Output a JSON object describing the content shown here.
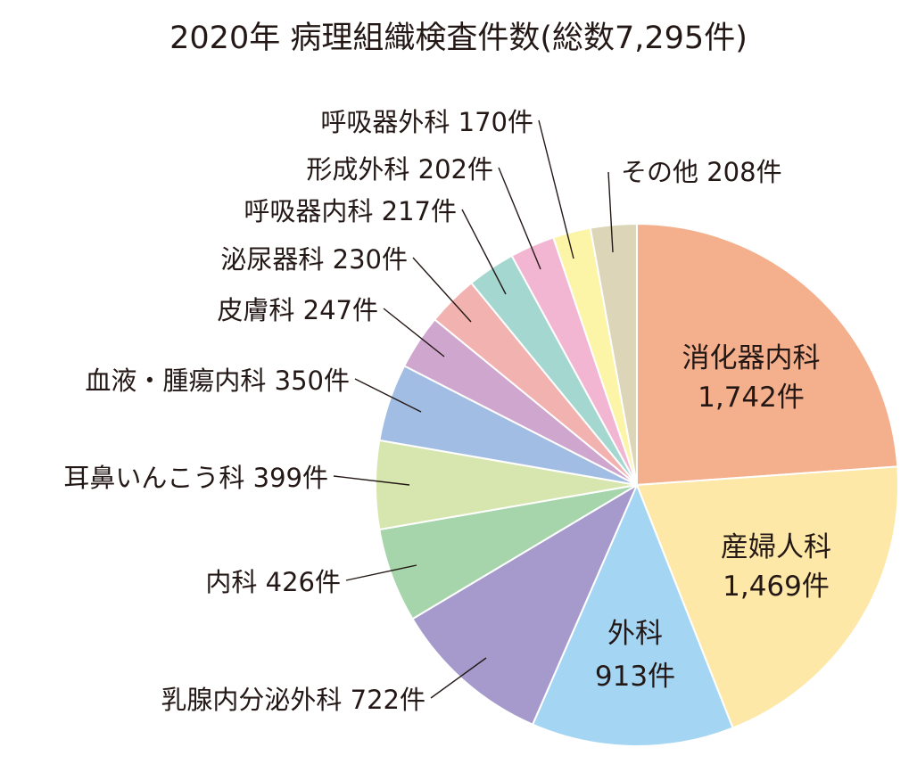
{
  "chart_data": {
    "type": "pie",
    "title": "2020年 病理組織検査件数(総数7,295件)",
    "unit": "件",
    "slices": [
      {
        "label": "消化器内科",
        "value": 1742,
        "value_text": "1,742件",
        "color": "#f4af8d"
      },
      {
        "label": "産婦人科",
        "value": 1469,
        "value_text": "1,469件",
        "color": "#fde8a7"
      },
      {
        "label": "外科",
        "value": 913,
        "value_text": "913件",
        "color": "#a4d6f4"
      },
      {
        "label": "乳腺内分泌外科",
        "value": 722,
        "value_text": "722件",
        "color": "#a59acb"
      },
      {
        "label": "内科",
        "value": 426,
        "value_text": "426件",
        "color": "#a6d5ab"
      },
      {
        "label": "耳鼻いんこう科",
        "value": 399,
        "value_text": "399件",
        "color": "#d7e6ae"
      },
      {
        "label": "血液・腫瘍内科",
        "value": 350,
        "value_text": "350件",
        "color": "#a2bde3"
      },
      {
        "label": "皮膚科",
        "value": 247,
        "value_text": "247件",
        "color": "#cfa6cd"
      },
      {
        "label": "泌尿器科",
        "value": 230,
        "value_text": "230件",
        "color": "#f1b2b0"
      },
      {
        "label": "呼吸器内科",
        "value": 217,
        "value_text": "217件",
        "color": "#a5d7d1"
      },
      {
        "label": "形成外科",
        "value": 202,
        "value_text": "202件",
        "color": "#f2b6d3"
      },
      {
        "label": "呼吸器外科",
        "value": 170,
        "value_text": "170件",
        "color": "#fcf4a6"
      },
      {
        "label": "その他",
        "value": 208,
        "value_text": "208件",
        "color": "#ddd5b8"
      }
    ]
  }
}
